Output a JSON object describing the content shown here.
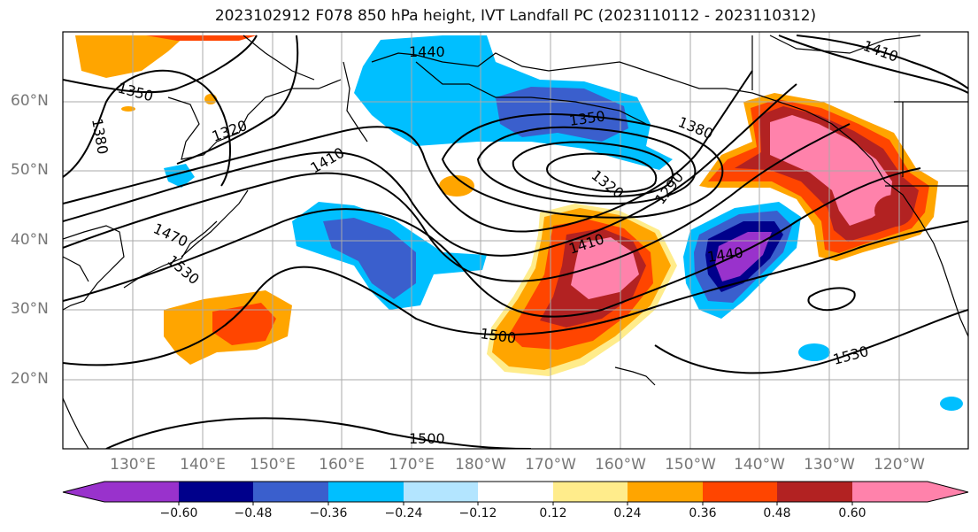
{
  "title": "2023102912 F078 850 hPa height, IVT Landfall PC (2023110112 - 2023110312)",
  "lat_labels": [
    "60°N",
    "50°N",
    "40°N",
    "30°N",
    "20°N"
  ],
  "lon_labels": [
    "130°E",
    "140°E",
    "150°E",
    "160°E",
    "170°E",
    "180°W",
    "170°W",
    "160°W",
    "150°W",
    "140°W",
    "130°W",
    "120°W"
  ],
  "contour_labels": [
    "1440",
    "1350",
    "1320",
    "1380",
    "1410",
    "1470",
    "1530",
    "1350",
    "1380",
    "1320",
    "1290",
    "1410",
    "1440",
    "1500",
    "1530",
    "1500",
    "1410"
  ],
  "colorbar": {
    "ticks": [
      "−0.60",
      "−0.48",
      "−0.36",
      "−0.24",
      "−0.12",
      "0.12",
      "0.24",
      "0.36",
      "0.48",
      "0.60"
    ],
    "colors": [
      "#9932cc",
      "#00008b",
      "#3a5fcd",
      "#00bfff",
      "#b3e5ff",
      "#ffffff",
      "#ffffff",
      "#ffec8b",
      "#ffa500",
      "#ff4500",
      "#b22222",
      "#ff82ab"
    ]
  },
  "colors": {
    "neg_strong": "#9932cc",
    "neg_dark": "#00008b",
    "neg_mid": "#3a5fcd",
    "neg_light": "#00bfff",
    "neg_pale": "#b3e5ff",
    "pos_pale": "#ffec8b",
    "pos_light": "#ffa500",
    "pos_mid": "#ff4500",
    "pos_dark": "#b22222",
    "pos_strong": "#ff82ab"
  }
}
